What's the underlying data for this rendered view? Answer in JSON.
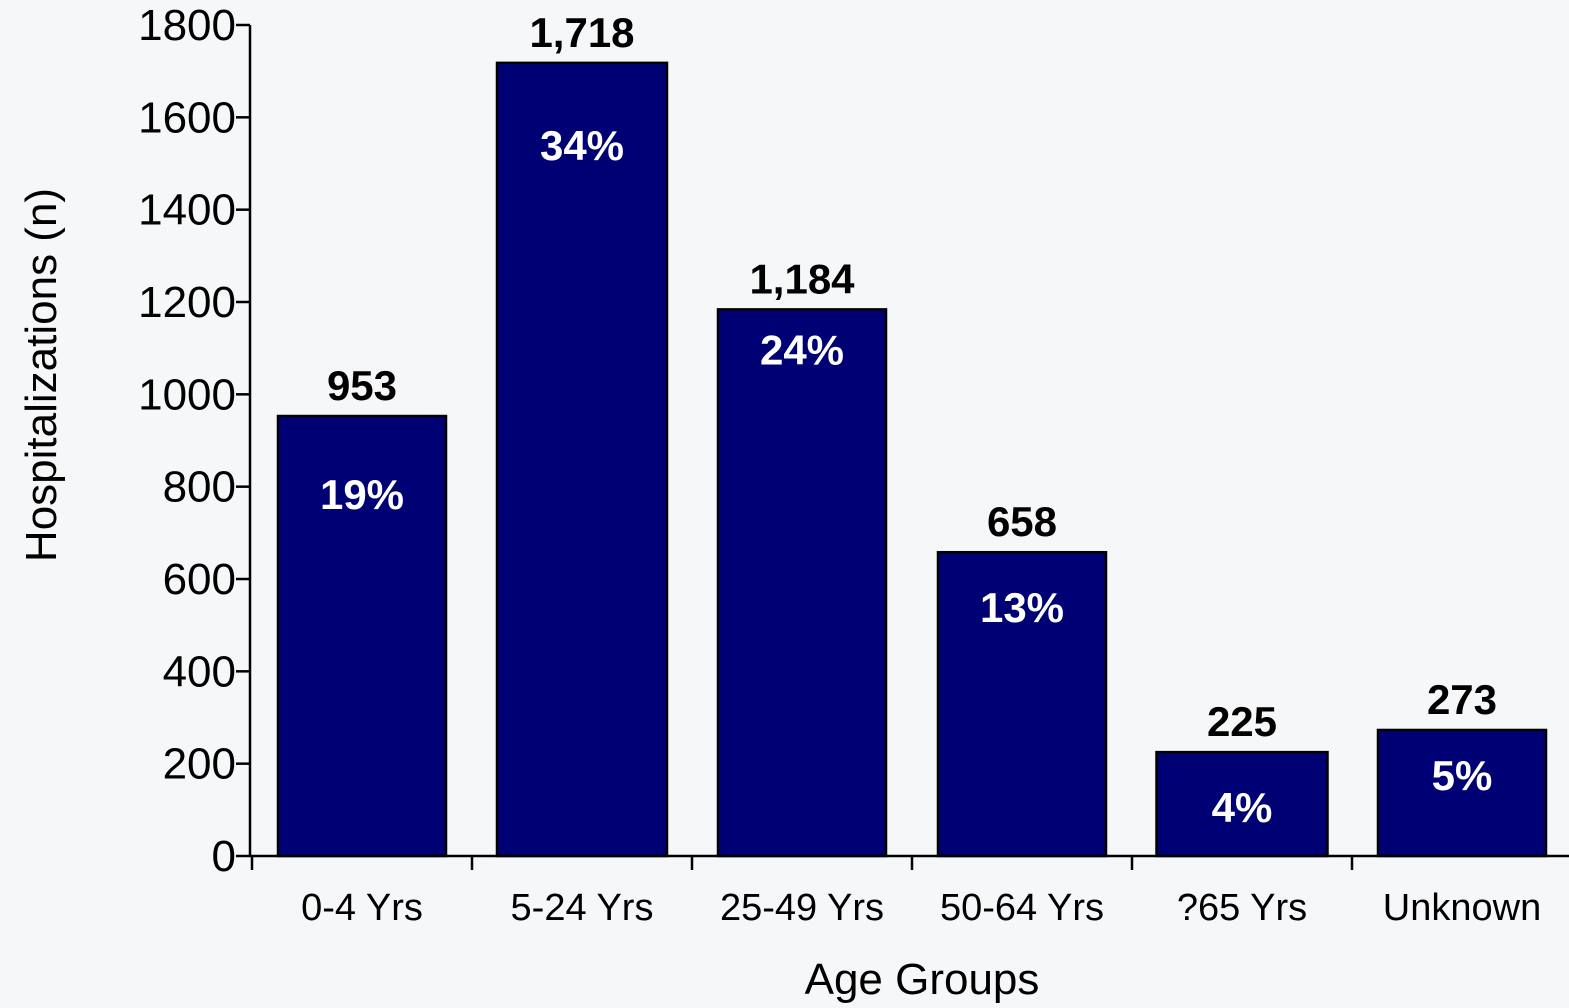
{
  "chart_data": {
    "type": "bar",
    "title": "",
    "xlabel": "Age Groups",
    "ylabel": "Hospitalizations (n)",
    "ylim": [
      0,
      1800
    ],
    "yticks": [
      "0",
      "200",
      "400",
      "600",
      "800",
      "1000",
      "1200",
      "1400",
      "1600",
      "1800"
    ],
    "grid": false,
    "categories": [
      "0-4 Yrs",
      "5-24 Yrs",
      "25-49 Yrs",
      "50-64 Yrs",
      "?65  Yrs",
      "Unknown"
    ],
    "values": [
      953,
      1718,
      1184,
      658,
      225,
      273
    ],
    "value_labels": [
      "953",
      "1,718",
      "1,184",
      "658",
      "225",
      "273"
    ],
    "percent_labels": [
      "19%",
      "34%",
      "24%",
      "13%",
      "4%",
      "5%"
    ],
    "colors": {
      "bar": "#000075",
      "background": "#F6F7F9",
      "axis": "#000000",
      "percent_text": "#FFFFFF"
    }
  }
}
